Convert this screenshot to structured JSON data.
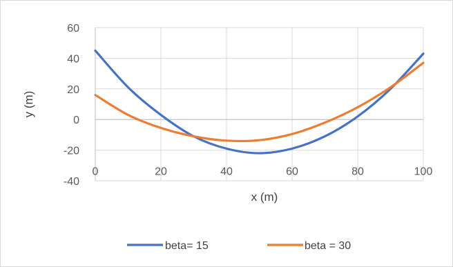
{
  "chart_data": {
    "type": "line",
    "title": "",
    "xlabel": "x (m)",
    "ylabel": "y (m)",
    "xlim": [
      0,
      100
    ],
    "ylim": [
      -40,
      60
    ],
    "x_ticks": [
      0,
      20,
      40,
      60,
      80,
      100
    ],
    "y_ticks": [
      -40,
      -20,
      0,
      20,
      40,
      60
    ],
    "x_tick_labels": [
      "0",
      "20",
      "40",
      "60",
      "80",
      "100"
    ],
    "y_tick_labels": [
      "-40",
      "-20",
      "0",
      "20",
      "40",
      "60"
    ],
    "grid": true,
    "legend_position": "bottom",
    "series": [
      {
        "name": "beta= 15",
        "color": "#4472c4",
        "x": [
          0,
          10,
          20,
          30,
          40,
          50,
          60,
          70,
          80,
          90,
          100
        ],
        "y": [
          45,
          21,
          3,
          -11,
          -19,
          -22,
          -19,
          -11,
          2,
          20,
          43
        ]
      },
      {
        "name": "beta = 30",
        "color": "#ed7d31",
        "x": [
          0,
          10,
          20,
          30,
          40,
          50,
          60,
          70,
          80,
          90,
          100
        ],
        "y": [
          16,
          3,
          -5.5,
          -11,
          -13.8,
          -13.5,
          -9.5,
          -2,
          8,
          21,
          37
        ]
      }
    ]
  }
}
